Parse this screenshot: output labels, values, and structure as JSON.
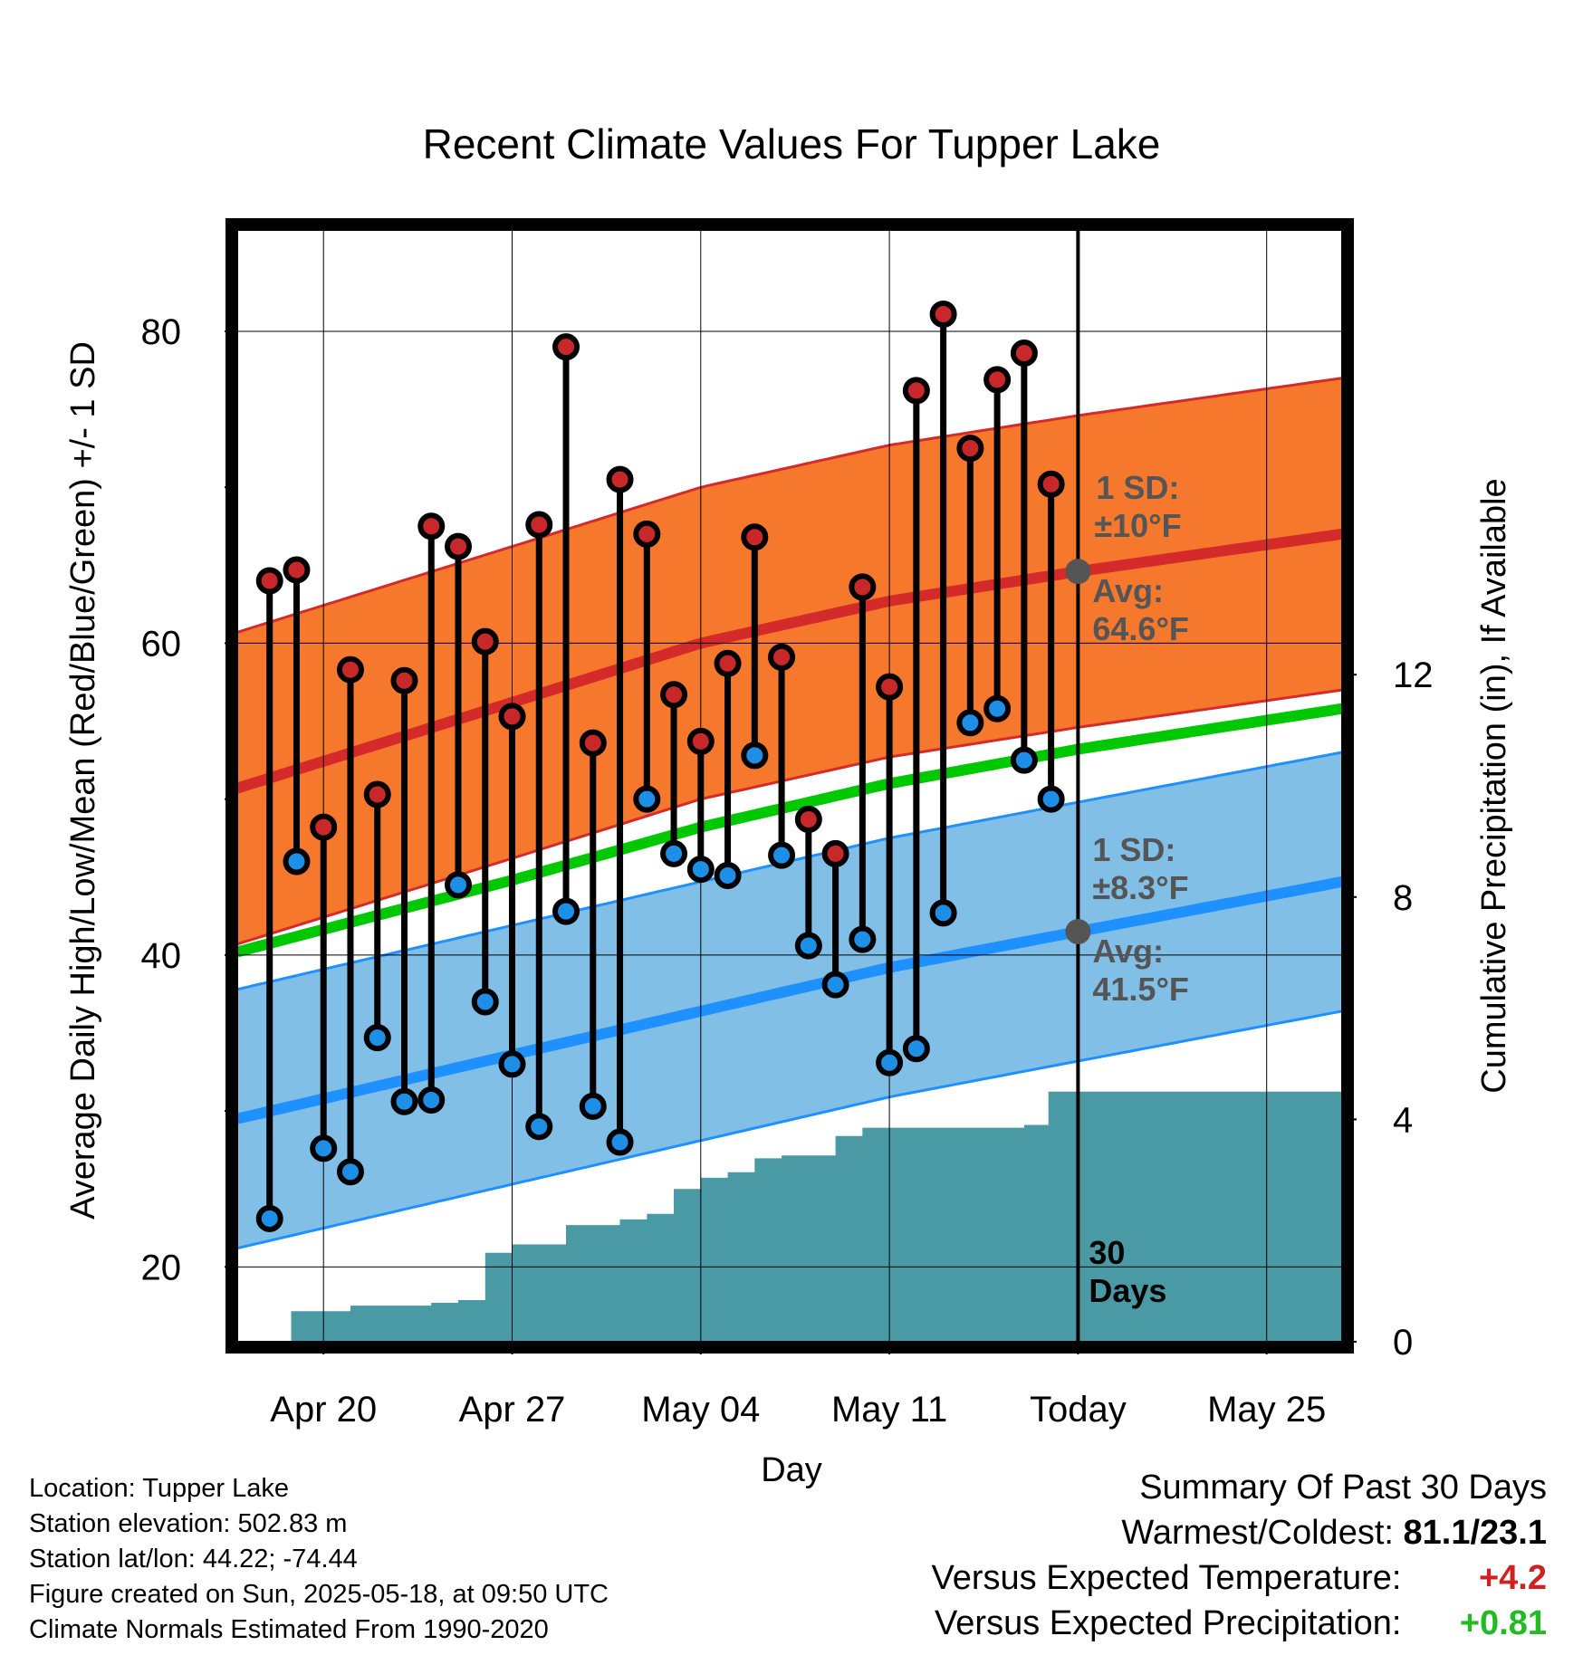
{
  "chart_data": {
    "type": "climate-range",
    "title": "Recent Climate Values For Tupper Lake",
    "xlabel": "Day",
    "ylabel_left": "Average Daily High/Low/Mean (Red/Blue/Green) +/- 1 SD",
    "ylabel_right": "Cumulative Precipitation (in), If Available",
    "x_tick_labels": [
      {
        "day": 0,
        "label": "Apr 20"
      },
      {
        "day": 7,
        "label": "Apr 27"
      },
      {
        "day": 14,
        "label": "May 04"
      },
      {
        "day": 21,
        "label": "May 11"
      },
      {
        "day": 28,
        "label": "Today"
      },
      {
        "day": 35,
        "label": "May 25"
      }
    ],
    "xlim_days_from_apr20": [
      -3.2,
      37.8
    ],
    "ylim_temp_F": [
      15.2,
      86.5
    ],
    "y_ticks_temp": [
      20,
      40,
      60,
      80
    ],
    "ylim_precip_in": [
      0,
      20
    ],
    "y_ticks_precip": [
      0,
      4,
      8,
      12
    ],
    "days_from_apr20": [
      -2,
      -1,
      0,
      1,
      2,
      3,
      4,
      5,
      6,
      7,
      8,
      9,
      10,
      11,
      12,
      13,
      14,
      15,
      16,
      17,
      18,
      19,
      20,
      21,
      22,
      23,
      24,
      25,
      26,
      27
    ],
    "daily_high_F": [
      64.0,
      64.7,
      48.2,
      58.3,
      50.3,
      57.6,
      67.5,
      66.2,
      60.1,
      55.3,
      67.6,
      79.0,
      53.6,
      70.5,
      67.0,
      56.7,
      53.7,
      58.7,
      66.8,
      59.1,
      48.7,
      46.5,
      63.6,
      57.2,
      76.2,
      81.1,
      72.5,
      76.9,
      78.6,
      70.2
    ],
    "daily_low_F": [
      23.1,
      46.0,
      27.6,
      26.1,
      34.7,
      30.6,
      30.7,
      44.5,
      37.0,
      33.0,
      29.0,
      42.8,
      30.3,
      28.0,
      50.0,
      46.5,
      45.5,
      45.1,
      52.8,
      46.4,
      40.6,
      38.1,
      41.0,
      33.1,
      34.0,
      42.7,
      54.9,
      55.8,
      52.5,
      50.0
    ],
    "normals": [
      {
        "day": -3.2,
        "high": 50.7,
        "low": 29.5,
        "mean": 40.2,
        "high_sd": 10.0,
        "low_sd": 8.3
      },
      {
        "day": 7,
        "high": 56.2,
        "low": 33.6,
        "mean": 44.8,
        "high_sd": 10.0,
        "low_sd": 8.3
      },
      {
        "day": 14,
        "high": 60.0,
        "low": 36.4,
        "mean": 48.2,
        "high_sd": 10.0,
        "low_sd": 8.3
      },
      {
        "day": 21,
        "high": 62.7,
        "low": 39.2,
        "mean": 51.0,
        "high_sd": 10.0,
        "low_sd": 8.3
      },
      {
        "day": 28,
        "high": 64.6,
        "low": 41.5,
        "mean": 53.2,
        "high_sd": 10.0,
        "low_sd": 8.3
      },
      {
        "day": 37.8,
        "high": 67.0,
        "low": 44.7,
        "mean": 55.8,
        "high_sd": 10.0,
        "low_sd": 8.3
      }
    ],
    "precip_cumulative_in": [
      {
        "day": -2,
        "value": 0.0
      },
      {
        "day": -1.2,
        "value": 0.55
      },
      {
        "day": 0,
        "value": 0.55
      },
      {
        "day": 1,
        "value": 0.65
      },
      {
        "day": 2,
        "value": 0.65
      },
      {
        "day": 3,
        "value": 0.65
      },
      {
        "day": 4,
        "value": 0.7
      },
      {
        "day": 5,
        "value": 0.75
      },
      {
        "day": 6,
        "value": 1.6
      },
      {
        "day": 7,
        "value": 1.75
      },
      {
        "day": 8,
        "value": 1.75
      },
      {
        "day": 9,
        "value": 2.1
      },
      {
        "day": 10,
        "value": 2.1
      },
      {
        "day": 11,
        "value": 2.2
      },
      {
        "day": 12,
        "value": 2.3
      },
      {
        "day": 13,
        "value": 2.75
      },
      {
        "day": 14,
        "value": 2.95
      },
      {
        "day": 15,
        "value": 3.05
      },
      {
        "day": 16,
        "value": 3.3
      },
      {
        "day": 17,
        "value": 3.35
      },
      {
        "day": 18,
        "value": 3.35
      },
      {
        "day": 19,
        "value": 3.7
      },
      {
        "day": 20,
        "value": 3.85
      },
      {
        "day": 21,
        "value": 3.85
      },
      {
        "day": 22,
        "value": 3.85
      },
      {
        "day": 23,
        "value": 3.85
      },
      {
        "day": 24,
        "value": 3.85
      },
      {
        "day": 25,
        "value": 3.85
      },
      {
        "day": 26,
        "value": 3.9
      },
      {
        "day": 26.9,
        "value": 4.5
      },
      {
        "day": 37.8,
        "value": 4.5
      }
    ],
    "annotations": {
      "high_sd_text_1": "1 SD:",
      "high_sd_text_2": "±10°F",
      "high_avg_text_1": "Avg:",
      "high_avg_text_2": "64.6°F",
      "low_sd_text_1": "1 SD:",
      "low_sd_text_2": "±8.3°F",
      "low_avg_text_1": "Avg:",
      "low_avg_text_2": "41.5°F",
      "days_text_1": "30",
      "days_text_2": "Days"
    },
    "colors": {
      "high_band": "#f5782d",
      "high_line": "#d42a2a",
      "low_band": "#82bfe6",
      "low_line": "#1e90ff",
      "mean_line": "#00c800",
      "precip": "#4a9aa5",
      "high_dot": "#c8282a",
      "low_dot": "#1e8fe6",
      "annotation": "#555555"
    }
  },
  "info": {
    "location": "Location: Tupper Lake",
    "elevation": "Station elevation: 502.83 m",
    "latlon": "Station lat/lon: 44.22; -74.44",
    "created": "Figure created on Sun, 2025-05-18, at 09:50 UTC",
    "normals": "Climate Normals Estimated From 1990-2020"
  },
  "summary": {
    "title": "Summary Of Past 30 Days",
    "warmest_label": "Warmest/Coldest:",
    "warmest_value": "81.1/23.1",
    "temp_label": "Versus Expected Temperature:",
    "temp_value": "+4.2",
    "temp_color": "#cc2222",
    "precip_label": "Versus Expected Precipitation:",
    "precip_value": "+0.81",
    "precip_color": "#22bb22"
  }
}
